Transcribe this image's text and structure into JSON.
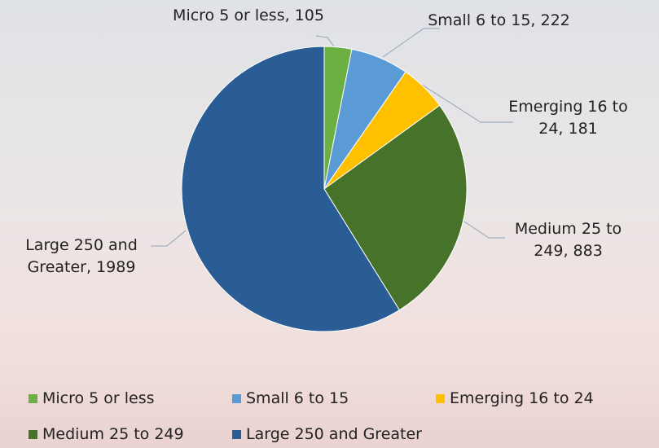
{
  "chart_data": {
    "type": "pie",
    "categories": [
      "Micro 5 or less",
      "Small 6 to 15",
      "Emerging 16 to 24",
      "Medium 25 to 249",
      "Large 250 and Greater"
    ],
    "values": [
      105,
      222,
      181,
      883,
      1989
    ],
    "value_labels": [
      "Micro 5 or less, 105",
      "Small 6 to 15, 222",
      "Emerging 16 to 24, 181",
      "Medium 25 to 249, 883",
      "Large 250 and Greater, 1989"
    ],
    "colors": [
      "#6cb043",
      "#5b9bd5",
      "#ffc000",
      "#46722a",
      "#2a5d96"
    ],
    "legend": "bottom"
  }
}
